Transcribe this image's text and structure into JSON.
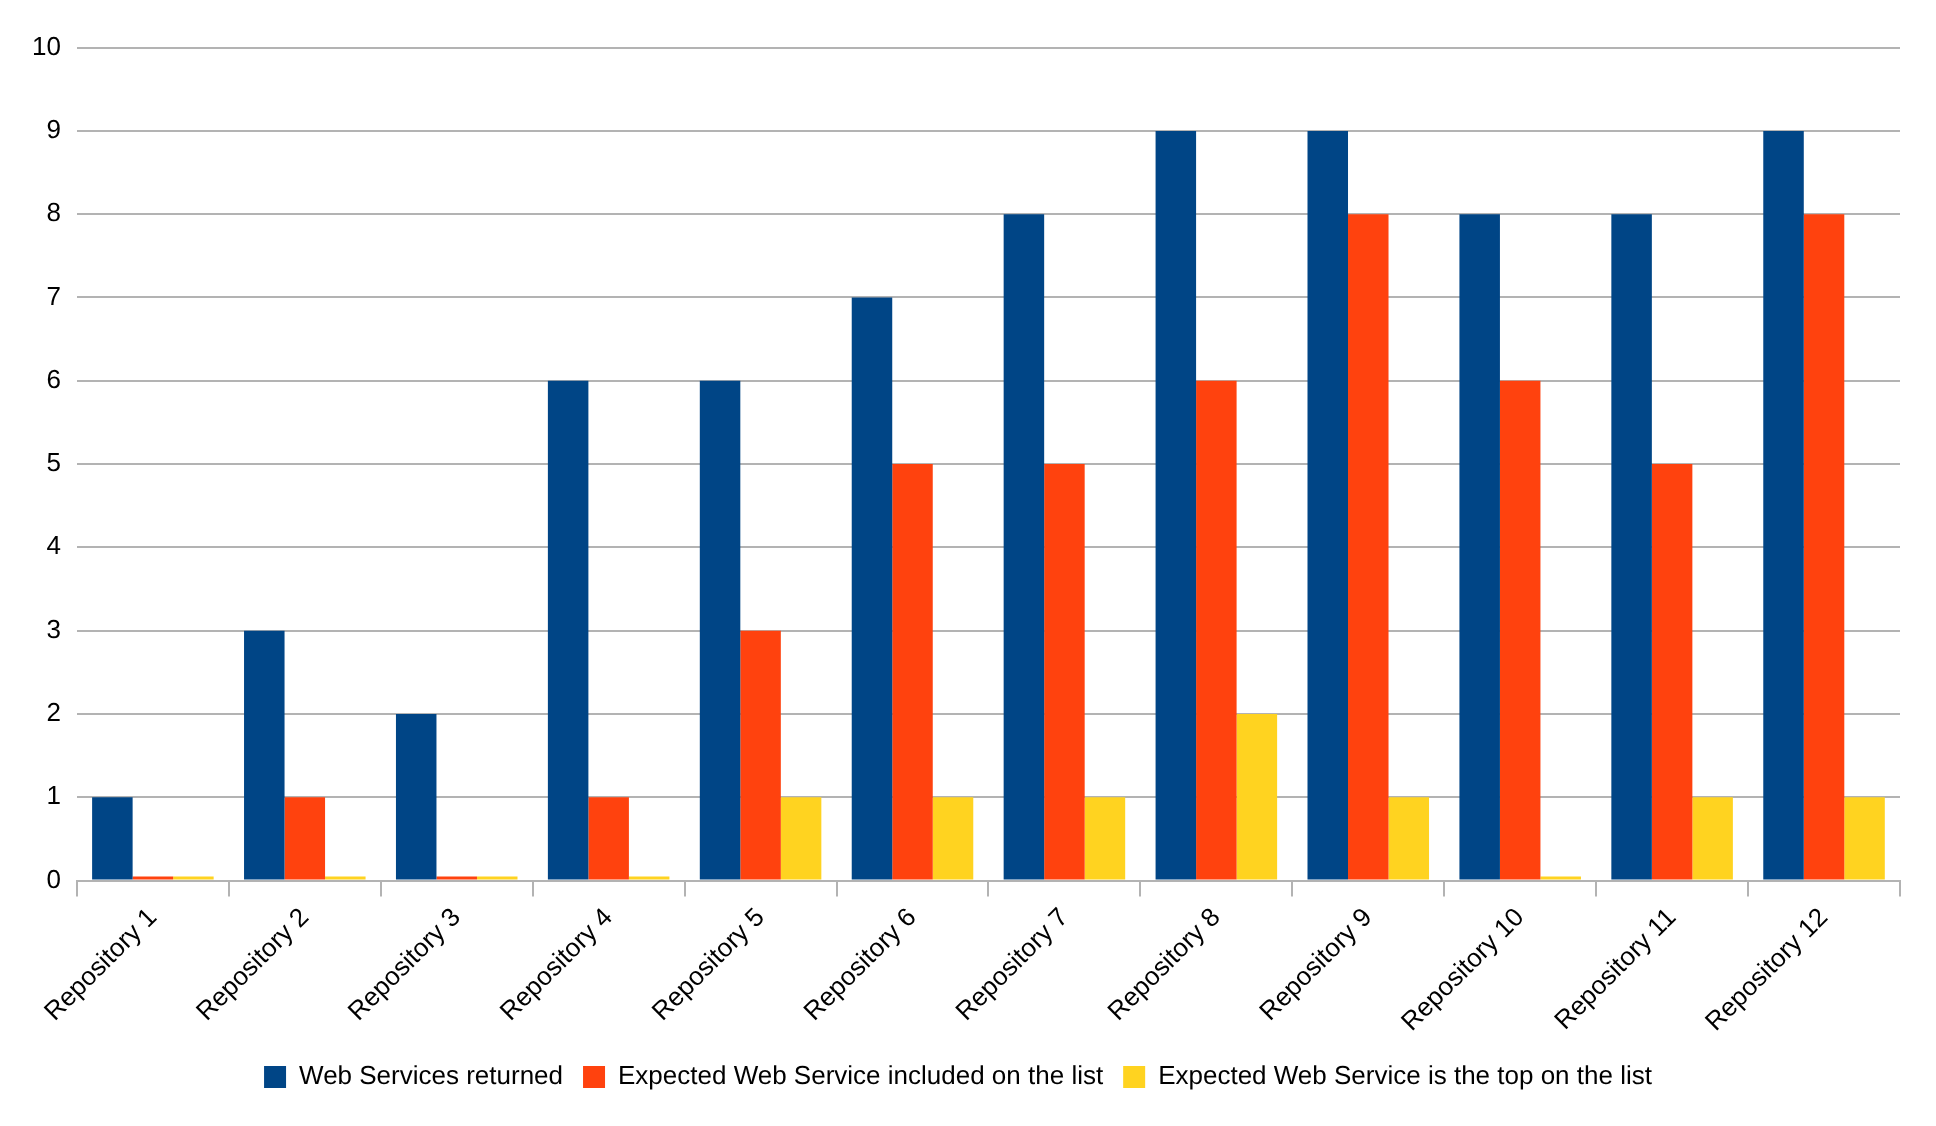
{
  "chart_data": {
    "type": "bar",
    "categories": [
      "Repository 1",
      "Repository 2",
      "Repository 3",
      "Repository 4",
      "Repository 5",
      "Repository 6",
      "Repository 7",
      "Repository 8",
      "Repository 9",
      "Repository 10",
      "Repository 11",
      "Repository 12"
    ],
    "series": [
      {
        "name": "Web Services returned",
        "color": "#004586",
        "values": [
          1,
          3,
          2,
          6,
          6,
          7,
          8,
          9,
          9,
          8,
          8,
          9
        ]
      },
      {
        "name": "Expected Web Service included on the list",
        "color": "#ff420e",
        "values": [
          0,
          1,
          0,
          1,
          3,
          5,
          5,
          6,
          8,
          6,
          5,
          8
        ]
      },
      {
        "name": "Expected Web Service is the top on the list",
        "color": "#ffd320",
        "values": [
          0,
          0,
          0,
          0,
          1,
          1,
          1,
          2,
          1,
          0,
          1,
          1
        ]
      }
    ],
    "ylim": [
      0,
      10
    ],
    "yticks": [
      0,
      1,
      2,
      3,
      4,
      5,
      6,
      7,
      8,
      9,
      10
    ],
    "grid": "y",
    "legend": "bottom"
  }
}
